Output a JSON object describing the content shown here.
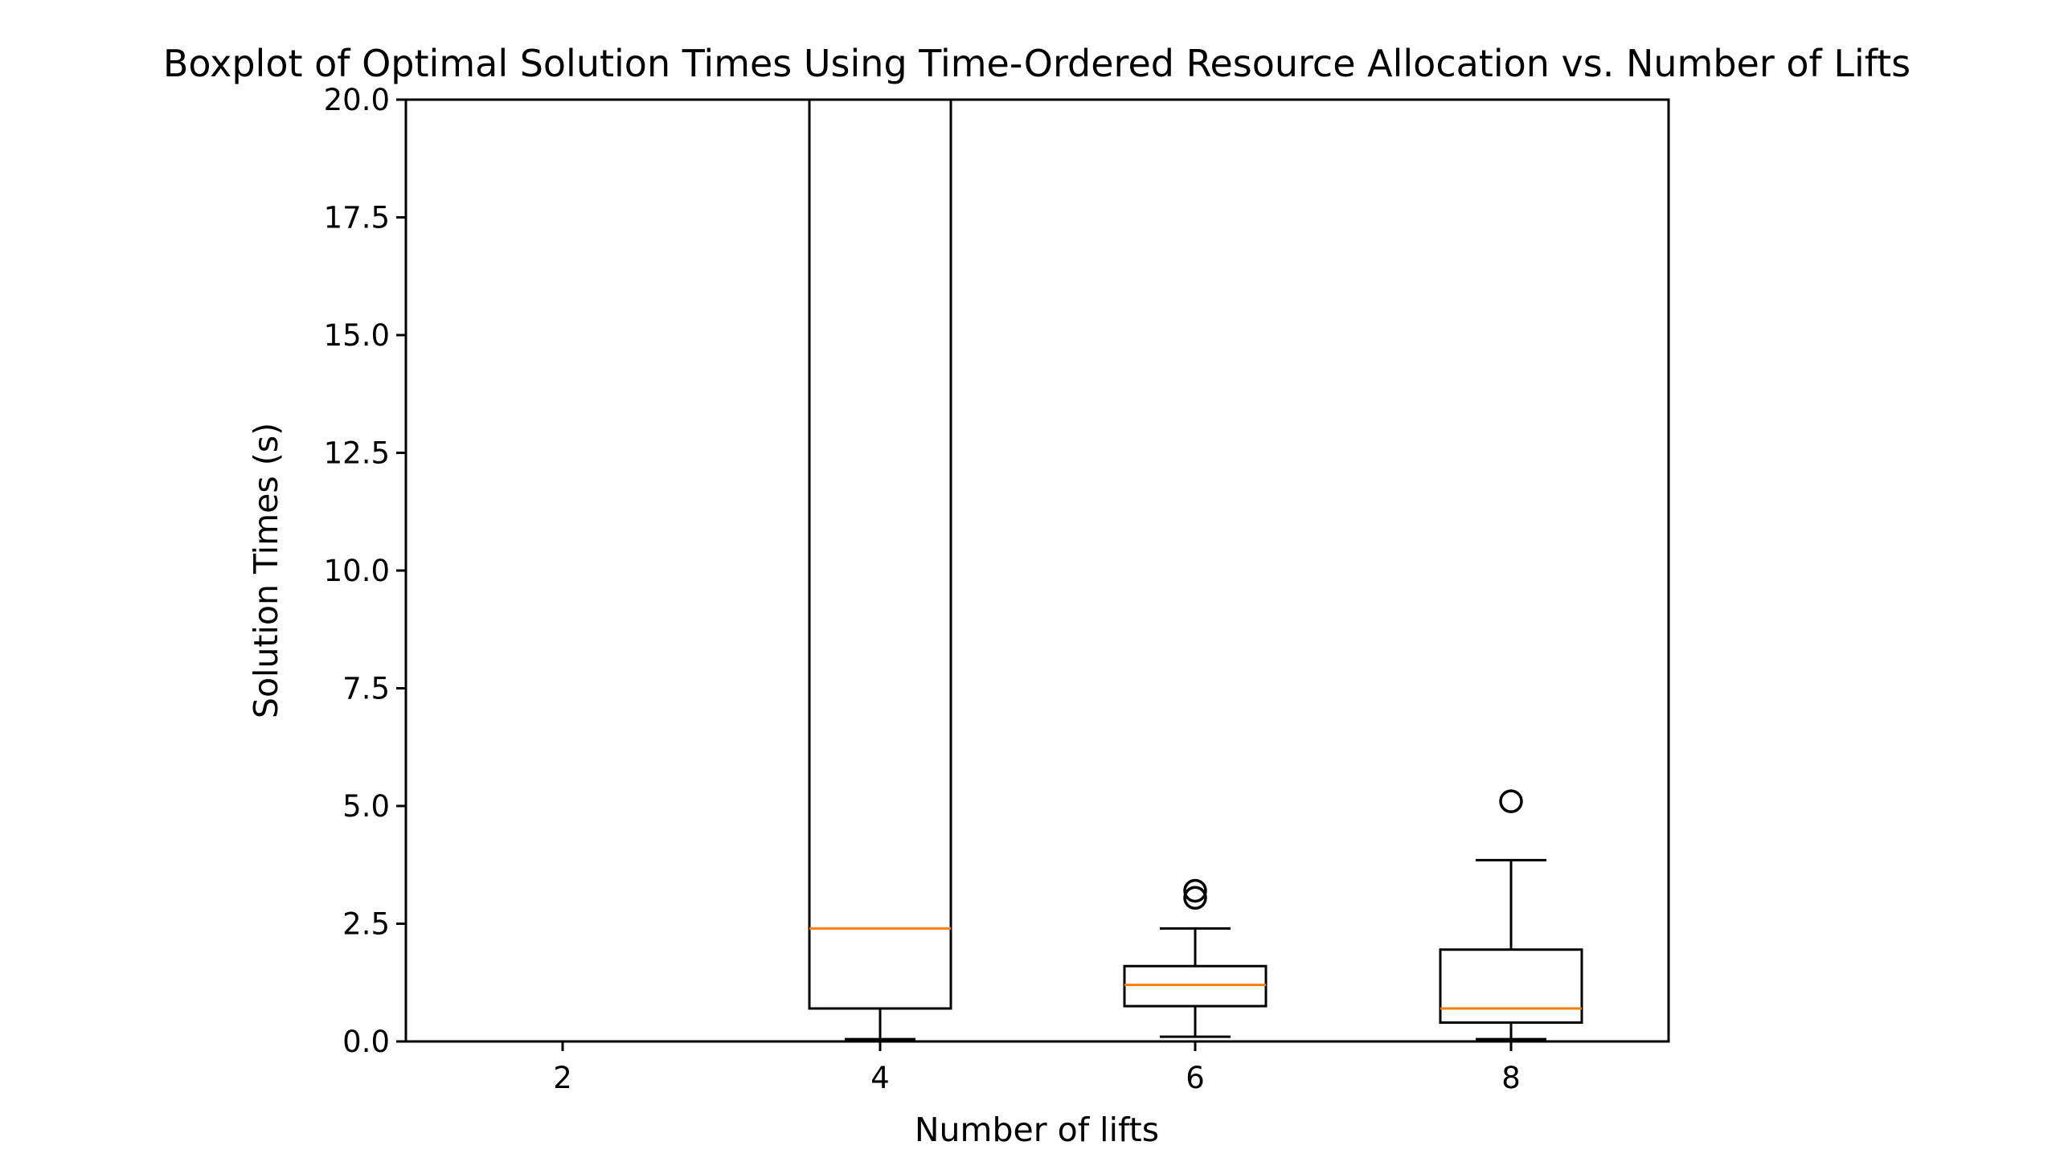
{
  "chart_data": {
    "type": "boxplot",
    "title": "Boxplot of Optimal Solution Times Using Time-Ordered Resource Allocation vs. Number of Lifts",
    "xlabel": "Number of lifts",
    "ylabel": "Solution Times (s)",
    "ylim": [
      0,
      20
    ],
    "yticks": [
      "0.0",
      "2.5",
      "5.0",
      "7.5",
      "10.0",
      "12.5",
      "15.0",
      "17.5",
      "20.0"
    ],
    "categories": [
      "2",
      "4",
      "6",
      "8"
    ],
    "boxes": [
      {
        "category": "2",
        "whisker_low": 0,
        "q1": 0,
        "median": 0,
        "q3": 0,
        "whisker_high": 0,
        "outliers": [],
        "empty": true
      },
      {
        "category": "4",
        "whisker_low": 0.05,
        "q1": 0.7,
        "median": 2.4,
        "q3": 20.0,
        "whisker_high": 20.0,
        "outliers": []
      },
      {
        "category": "6",
        "whisker_low": 0.1,
        "q1": 0.75,
        "median": 1.2,
        "q3": 1.6,
        "whisker_high": 2.4,
        "outliers": [
          3.05,
          3.2
        ]
      },
      {
        "category": "8",
        "whisker_low": 0.05,
        "q1": 0.4,
        "median": 0.7,
        "q3": 1.95,
        "whisker_high": 3.85,
        "outliers": [
          5.1
        ]
      }
    ],
    "grid": false,
    "colors": {
      "box": "#000000",
      "median": "#ff7f0e"
    }
  }
}
